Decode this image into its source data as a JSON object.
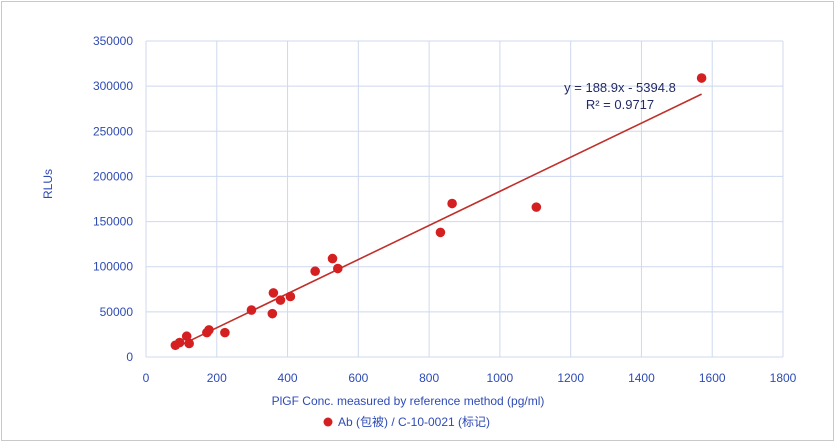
{
  "chart_data": {
    "type": "scatter",
    "xlabel": "PlGF Conc. measured by reference method (pg/ml)",
    "ylabel": "RLUs",
    "xlim": [
      0,
      1800
    ],
    "ylim": [
      0,
      350000
    ],
    "x_ticks": [
      "0",
      "200",
      "400",
      "600",
      "800",
      "1000",
      "1200",
      "1400",
      "1600",
      "1800"
    ],
    "y_ticks": [
      "0",
      "50000",
      "100000",
      "150000",
      "200000",
      "250000",
      "300000",
      "350000"
    ],
    "grid": "vertical and horizontal major gridlines",
    "series": [
      {
        "name": "Ab (包被) / C-10-0021 (标记)",
        "color": "#d42020",
        "points": [
          [
            83,
            13000
          ],
          [
            95,
            16000
          ],
          [
            115,
            23000
          ],
          [
            122,
            15000
          ],
          [
            172,
            27000
          ],
          [
            178,
            30000
          ],
          [
            223,
            27000
          ],
          [
            298,
            52000
          ],
          [
            357,
            48000
          ],
          [
            360,
            71000
          ],
          [
            380,
            63000
          ],
          [
            408,
            67000
          ],
          [
            478,
            95000
          ],
          [
            527,
            109000
          ],
          [
            542,
            98000
          ],
          [
            832,
            138000
          ],
          [
            865,
            170000
          ],
          [
            1103,
            166000
          ],
          [
            1570,
            309000
          ]
        ]
      }
    ],
    "trendline": {
      "type": "linear",
      "slope": 188.9,
      "intercept": -5394.8,
      "x_range": [
        83,
        1570
      ],
      "color": "#c0302b",
      "equation_label": "y = 188.9x - 5394.8",
      "r2_label": "R² = 0.9717"
    },
    "legend_position": "bottom-center"
  }
}
